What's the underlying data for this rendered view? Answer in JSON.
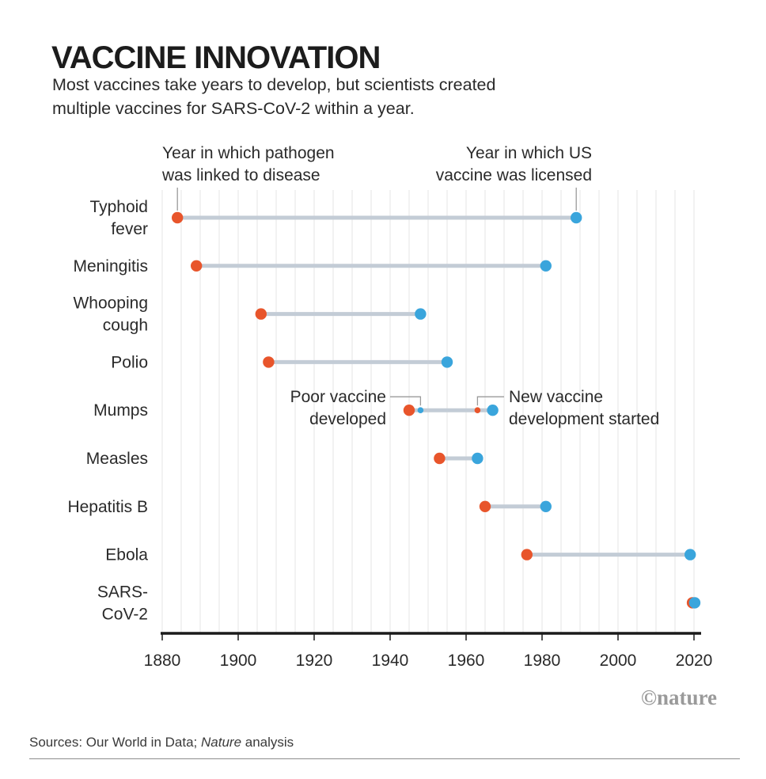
{
  "chart_data": {
    "type": "dumbbell",
    "title": "VACCINE INNOVATION",
    "subtitle": [
      "Most vaccines take years to develop, but scientists created",
      "multiple vaccines for SARS-CoV-2 within a year."
    ],
    "legend": {
      "start_label": [
        "Year in which pathogen",
        "was linked to disease"
      ],
      "end_label": [
        "Year in which US",
        "vaccine was licensed"
      ]
    },
    "xlim": [
      1880,
      2020
    ],
    "xticks": [
      1880,
      1900,
      1920,
      1940,
      1960,
      1980,
      2000,
      2020
    ],
    "colors": {
      "start": "#e8552b",
      "end": "#3aa5dc",
      "bar": "#c3ccd6",
      "grid": "#e6e6e6",
      "axis": "#1a1a1a"
    },
    "series": [
      {
        "name": [
          "Typhoid",
          "fever"
        ],
        "start": 1884,
        "end": 1989
      },
      {
        "name": [
          "Meningitis"
        ],
        "start": 1889,
        "end": 1981
      },
      {
        "name": [
          "Whooping",
          "cough"
        ],
        "start": 1906,
        "end": 1948
      },
      {
        "name": [
          "Polio"
        ],
        "start": 1908,
        "end": 1955
      },
      {
        "name": [
          "Mumps"
        ],
        "start": 1945,
        "end": 1967,
        "poor_vaccine": 1948,
        "new_dev_start": 1963
      },
      {
        "name": [
          "Measles"
        ],
        "start": 1953,
        "end": 1963
      },
      {
        "name": [
          "Hepatitis B"
        ],
        "start": 1965,
        "end": 1981
      },
      {
        "name": [
          "Ebola"
        ],
        "start": 1976,
        "end": 2019
      },
      {
        "name": [
          "SARS-",
          "CoV-2"
        ],
        "start": 2019.6,
        "end": 2020.2
      }
    ],
    "annotations": {
      "poor_vaccine": [
        "Poor vaccine",
        "developed"
      ],
      "new_vaccine": [
        "New vaccine",
        "development started"
      ]
    }
  },
  "credit": "©nature",
  "source": {
    "prefix": "Sources: Our World in Data; ",
    "italic": "Nature",
    "suffix": " analysis"
  }
}
